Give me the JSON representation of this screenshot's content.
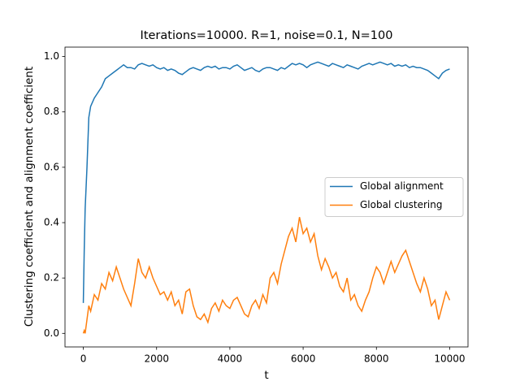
{
  "chart_data": {
    "type": "line",
    "title": "Iterations=10000. R=1, noise=0.1, N=100",
    "xlabel": "t",
    "ylabel": "Clustering coefficient and alignment coefficient",
    "x": [
      0,
      25,
      50,
      100,
      150,
      200,
      300,
      400,
      500,
      600,
      700,
      800,
      900,
      1000,
      1100,
      1200,
      1300,
      1400,
      1500,
      1600,
      1700,
      1800,
      1900,
      2000,
      2100,
      2200,
      2300,
      2400,
      2500,
      2600,
      2700,
      2800,
      2900,
      3000,
      3100,
      3200,
      3300,
      3400,
      3500,
      3600,
      3700,
      3800,
      3900,
      4000,
      4100,
      4200,
      4300,
      4400,
      4500,
      4600,
      4700,
      4800,
      4900,
      5000,
      5100,
      5200,
      5300,
      5400,
      5500,
      5600,
      5700,
      5800,
      5900,
      6000,
      6100,
      6200,
      6300,
      6400,
      6500,
      6600,
      6700,
      6800,
      6900,
      7000,
      7100,
      7200,
      7300,
      7400,
      7500,
      7600,
      7700,
      7800,
      7900,
      8000,
      8100,
      8200,
      8300,
      8400,
      8500,
      8600,
      8700,
      8800,
      8900,
      9000,
      9100,
      9200,
      9300,
      9400,
      9500,
      9600,
      9700,
      9800,
      9900,
      10000
    ],
    "series": [
      {
        "name": "Global alignment",
        "color": "#1f77b4",
        "values": [
          0.11,
          0.3,
          0.45,
          0.6,
          0.78,
          0.82,
          0.85,
          0.87,
          0.89,
          0.92,
          0.93,
          0.94,
          0.95,
          0.96,
          0.97,
          0.96,
          0.96,
          0.955,
          0.97,
          0.975,
          0.97,
          0.965,
          0.97,
          0.96,
          0.955,
          0.96,
          0.95,
          0.955,
          0.95,
          0.94,
          0.935,
          0.945,
          0.955,
          0.96,
          0.955,
          0.95,
          0.96,
          0.965,
          0.96,
          0.965,
          0.955,
          0.96,
          0.96,
          0.955,
          0.965,
          0.97,
          0.96,
          0.95,
          0.955,
          0.96,
          0.95,
          0.945,
          0.955,
          0.96,
          0.96,
          0.955,
          0.95,
          0.96,
          0.955,
          0.965,
          0.975,
          0.97,
          0.975,
          0.97,
          0.96,
          0.97,
          0.975,
          0.98,
          0.975,
          0.97,
          0.965,
          0.975,
          0.97,
          0.965,
          0.96,
          0.97,
          0.965,
          0.96,
          0.955,
          0.965,
          0.97,
          0.975,
          0.97,
          0.975,
          0.98,
          0.975,
          0.97,
          0.975,
          0.965,
          0.97,
          0.965,
          0.97,
          0.96,
          0.965,
          0.96,
          0.96,
          0.955,
          0.95,
          0.94,
          0.93,
          0.92,
          0.94,
          0.95,
          0.955
        ]
      },
      {
        "name": "Global clustering",
        "color": "#ff7f0e",
        "values": [
          0.0,
          0.01,
          0.0,
          0.05,
          0.1,
          0.08,
          0.14,
          0.12,
          0.18,
          0.16,
          0.22,
          0.19,
          0.24,
          0.2,
          0.16,
          0.13,
          0.1,
          0.18,
          0.27,
          0.22,
          0.2,
          0.24,
          0.2,
          0.17,
          0.14,
          0.15,
          0.12,
          0.15,
          0.1,
          0.12,
          0.07,
          0.15,
          0.16,
          0.1,
          0.06,
          0.05,
          0.07,
          0.04,
          0.09,
          0.11,
          0.08,
          0.12,
          0.1,
          0.09,
          0.12,
          0.13,
          0.1,
          0.07,
          0.06,
          0.1,
          0.12,
          0.09,
          0.14,
          0.11,
          0.2,
          0.22,
          0.18,
          0.25,
          0.3,
          0.35,
          0.38,
          0.33,
          0.42,
          0.36,
          0.38,
          0.33,
          0.36,
          0.28,
          0.23,
          0.27,
          0.24,
          0.2,
          0.22,
          0.17,
          0.15,
          0.2,
          0.12,
          0.14,
          0.1,
          0.08,
          0.12,
          0.15,
          0.2,
          0.24,
          0.22,
          0.18,
          0.22,
          0.26,
          0.22,
          0.25,
          0.28,
          0.3,
          0.26,
          0.22,
          0.18,
          0.15,
          0.2,
          0.16,
          0.1,
          0.12,
          0.05,
          0.1,
          0.15,
          0.12
        ]
      }
    ],
    "xlim": [
      -500,
      10500
    ],
    "ylim": [
      -0.049,
      1.034
    ],
    "xticks": [
      0,
      2000,
      4000,
      6000,
      8000,
      10000
    ],
    "yticks": [
      {
        "value": 0,
        "label": "0.0"
      },
      0.2,
      0.4,
      0.6,
      0.8,
      {
        "value": 1,
        "label": "1.0"
      }
    ],
    "grid": false,
    "legend": "center right"
  }
}
